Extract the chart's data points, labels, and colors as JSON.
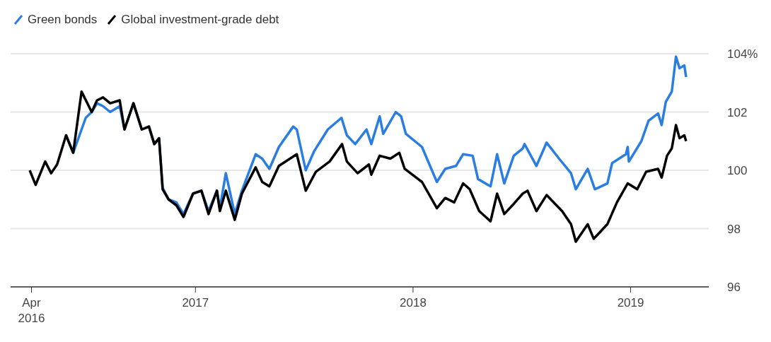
{
  "chart_data": {
    "type": "line",
    "legend": "top left",
    "grid": "y",
    "marker": "none",
    "line_style": "solid",
    "xlim": [
      "2016-02-26",
      "2019-05-12"
    ],
    "xticks": [
      {
        "value": "2016-04-01",
        "label": "Apr\n2016"
      },
      {
        "value": "2017-01-01",
        "label": "2017"
      },
      {
        "value": "2018-01-01",
        "label": "2018"
      },
      {
        "value": "2019-01-01",
        "label": "2019"
      }
    ],
    "ylim": [
      96,
      104
    ],
    "yticks": [
      96,
      98,
      100,
      102,
      {
        "value": 104,
        "label": "104%"
      }
    ],
    "series": [
      {
        "name": "Green bonds",
        "color": "#2a7de1",
        "x": [
          "2016-05-29",
          "2016-06-10",
          "2016-07-01",
          "2016-07-11",
          "2016-07-20",
          "2016-07-30",
          "2016-08-11",
          "2016-08-27",
          "2016-09-04",
          "2016-09-19",
          "2016-10-03",
          "2016-10-15",
          "2016-10-24",
          "2016-11-01",
          "2016-11-07",
          "2016-11-17",
          "2016-11-30",
          "2016-12-12",
          "2016-12-28",
          "2017-01-11",
          "2017-01-23",
          "2017-02-06",
          "2017-02-11",
          "2017-02-21",
          "2017-03-08",
          "2017-03-20",
          "2017-04-12",
          "2017-04-23",
          "2017-05-05",
          "2017-05-21",
          "2017-06-14",
          "2017-06-20",
          "2017-07-05",
          "2017-07-19",
          "2017-08-11",
          "2017-09-03",
          "2017-09-12",
          "2017-09-26",
          "2017-10-15",
          "2017-10-23",
          "2017-11-06",
          "2017-11-12",
          "2017-12-03",
          "2017-12-12",
          "2017-12-20",
          "2018-01-16",
          "2018-02-10",
          "2018-02-24",
          "2018-03-14",
          "2018-03-26",
          "2018-04-11",
          "2018-04-20",
          "2018-05-11",
          "2018-05-22",
          "2018-06-03",
          "2018-06-19",
          "2018-07-04",
          "2018-07-07",
          "2018-07-27",
          "2018-08-13",
          "2018-09-03",
          "2018-09-23",
          "2018-10-01",
          "2018-10-21",
          "2018-11-02",
          "2018-11-23",
          "2018-12-01",
          "2018-12-24",
          "2018-12-27",
          "2018-12-29",
          "2019-01-19",
          "2019-01-31",
          "2019-02-16",
          "2019-02-22",
          "2019-03-01",
          "2019-03-11",
          "2019-03-18",
          "2019-03-24",
          "2019-04-01",
          "2019-04-04"
        ],
        "values": [
          101.2,
          100.6,
          101.8,
          102.0,
          102.3,
          102.2,
          102.0,
          102.2,
          101.4,
          102.3,
          101.4,
          101.5,
          100.9,
          101.1,
          99.4,
          99.0,
          98.9,
          98.5,
          99.2,
          99.3,
          98.6,
          99.3,
          98.7,
          99.9,
          98.5,
          99.3,
          100.55,
          100.4,
          100.05,
          100.8,
          101.5,
          101.4,
          100.0,
          100.65,
          101.4,
          101.8,
          101.2,
          100.9,
          101.4,
          100.9,
          101.85,
          101.25,
          102.0,
          101.85,
          101.25,
          100.8,
          99.6,
          100.05,
          100.15,
          100.55,
          100.5,
          99.7,
          99.45,
          100.55,
          99.55,
          100.5,
          100.75,
          100.9,
          100.15,
          100.95,
          100.4,
          99.9,
          99.35,
          100.05,
          99.35,
          99.55,
          100.25,
          100.55,
          100.8,
          100.3,
          101.0,
          101.7,
          101.95,
          101.55,
          102.35,
          102.7,
          103.9,
          103.5,
          103.6,
          103.2
        ]
      },
      {
        "name": "Global investment-grade debt",
        "color": "#000000",
        "x": [
          "2016-03-29",
          "2016-04-08",
          "2016-04-24",
          "2016-05-04",
          "2016-05-14",
          "2016-05-29",
          "2016-06-10",
          "2016-06-24",
          "2016-07-11",
          "2016-07-20",
          "2016-07-30",
          "2016-08-11",
          "2016-08-27",
          "2016-09-04",
          "2016-09-19",
          "2016-10-03",
          "2016-10-15",
          "2016-10-24",
          "2016-11-01",
          "2016-11-07",
          "2016-11-17",
          "2016-11-30",
          "2016-12-12",
          "2016-12-28",
          "2017-01-11",
          "2017-01-23",
          "2017-02-06",
          "2017-02-11",
          "2017-02-21",
          "2017-03-08",
          "2017-03-20",
          "2017-04-12",
          "2017-04-23",
          "2017-05-05",
          "2017-05-21",
          "2017-06-20",
          "2017-07-05",
          "2017-07-22",
          "2017-08-14",
          "2017-09-04",
          "2017-09-12",
          "2017-09-30",
          "2017-10-19",
          "2017-10-23",
          "2017-11-06",
          "2017-11-24",
          "2017-12-09",
          "2017-12-18",
          "2018-01-16",
          "2018-02-10",
          "2018-02-24",
          "2018-03-11",
          "2018-03-26",
          "2018-04-06",
          "2018-04-22",
          "2018-05-11",
          "2018-05-22",
          "2018-06-03",
          "2018-06-19",
          "2018-07-04",
          "2018-07-12",
          "2018-07-27",
          "2018-08-13",
          "2018-09-08",
          "2018-09-23",
          "2018-10-01",
          "2018-10-21",
          "2018-10-31",
          "2018-11-23",
          "2018-12-09",
          "2018-12-27",
          "2019-01-12",
          "2019-01-27",
          "2019-02-16",
          "2019-02-22",
          "2019-03-03",
          "2019-03-11",
          "2019-03-18",
          "2019-03-24",
          "2019-04-01",
          "2019-04-04"
        ],
        "values": [
          100.0,
          99.5,
          100.3,
          99.9,
          100.2,
          101.2,
          100.6,
          102.7,
          102.0,
          102.4,
          102.5,
          102.3,
          102.4,
          101.4,
          102.3,
          101.4,
          101.5,
          100.9,
          101.1,
          99.35,
          99.0,
          98.8,
          98.4,
          99.2,
          99.3,
          98.5,
          99.3,
          98.6,
          99.3,
          98.3,
          99.2,
          100.1,
          99.6,
          99.45,
          100.15,
          100.55,
          99.3,
          99.95,
          100.3,
          100.9,
          100.3,
          99.9,
          100.2,
          99.85,
          100.5,
          100.4,
          100.6,
          100.05,
          99.6,
          98.7,
          99.05,
          98.9,
          99.55,
          99.35,
          98.6,
          98.25,
          99.2,
          98.5,
          98.85,
          99.2,
          99.3,
          98.6,
          99.15,
          98.6,
          98.15,
          97.55,
          98.15,
          97.65,
          98.15,
          98.9,
          99.55,
          99.35,
          99.95,
          100.05,
          99.75,
          100.5,
          100.75,
          101.55,
          101.1,
          101.2,
          101.0
        ]
      }
    ]
  }
}
